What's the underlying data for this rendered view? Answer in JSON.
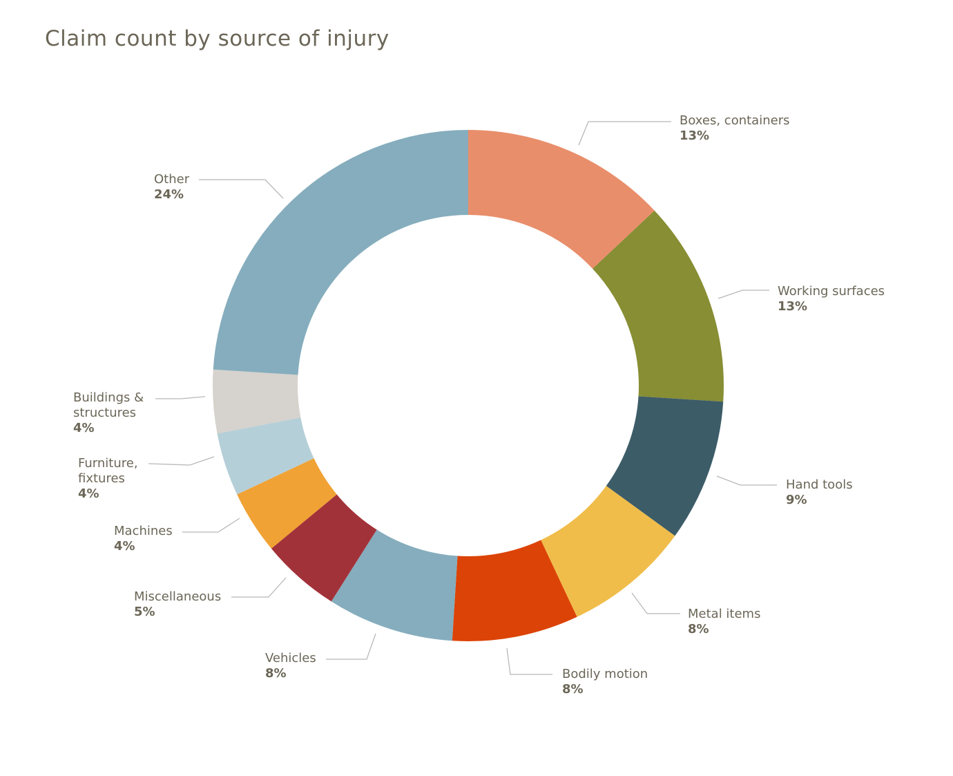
{
  "chart_data": {
    "type": "pie",
    "variant": "donut",
    "title": "Claim count by source of injury",
    "slices": [
      {
        "name": "Boxes, containers",
        "lines": [
          "Boxes, containers"
        ],
        "value": 13,
        "label": "13%",
        "color": "#E98E6B"
      },
      {
        "name": "Working surfaces",
        "lines": [
          "Working surfaces"
        ],
        "value": 13,
        "label": "13%",
        "color": "#878E33"
      },
      {
        "name": "Hand tools",
        "lines": [
          "Hand tools"
        ],
        "value": 9,
        "label": "9%",
        "color": "#3C5C68"
      },
      {
        "name": "Metal items",
        "lines": [
          "Metal items"
        ],
        "value": 8,
        "label": "8%",
        "color": "#F0BD4A"
      },
      {
        "name": "Bodily motion",
        "lines": [
          "Bodily motion"
        ],
        "value": 8,
        "label": "8%",
        "color": "#DC4306"
      },
      {
        "name": "Vehicles",
        "lines": [
          "Vehicles"
        ],
        "value": 8,
        "label": "8%",
        "color": "#85ADBD"
      },
      {
        "name": "Miscellaneous",
        "lines": [
          "Miscellaneous"
        ],
        "value": 5,
        "label": "5%",
        "color": "#A2323A"
      },
      {
        "name": "Machines",
        "lines": [
          "Machines"
        ],
        "value": 4,
        "label": "4%",
        "color": "#F0A235"
      },
      {
        "name": "Furniture, fixtures",
        "lines": [
          "Furniture,",
          "fixtures"
        ],
        "value": 4,
        "label": "4%",
        "color": "#B5CFD8"
      },
      {
        "name": "Buildings & structures",
        "lines": [
          "Buildings &",
          "structures"
        ],
        "value": 4,
        "label": "4%",
        "color": "#D6D2CE"
      },
      {
        "name": "Other",
        "lines": [
          "Other"
        ],
        "value": 24,
        "label": "24%",
        "color": "#85ADBD"
      }
    ]
  }
}
